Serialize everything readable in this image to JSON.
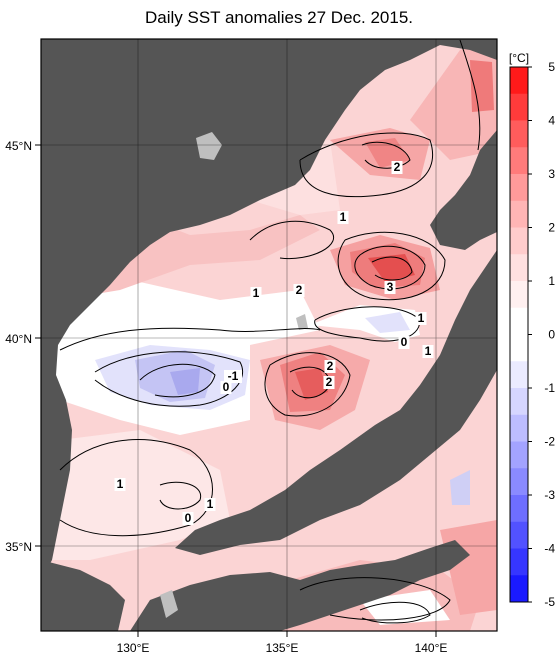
{
  "title": "Daily SST anomalies 27 Dec. 2015.",
  "map": {
    "lon_labels": [
      "130°E",
      "135°E",
      "140°E"
    ],
    "lat_labels": [
      "45°N",
      "40°N",
      "35°N"
    ],
    "contour_labels": [
      "2",
      "1",
      "2",
      "1",
      "3",
      "1",
      "0",
      "1",
      "2",
      "2",
      "-1",
      "0",
      "1",
      "1",
      "0"
    ]
  },
  "colorbar": {
    "unit": "[°C]",
    "ticks": [
      "5",
      "4",
      "3",
      "2",
      "1",
      "0",
      "-1",
      "-2",
      "-3",
      "-4",
      "-5"
    ],
    "colors": [
      "#ff1a1a",
      "#ff3b3b",
      "#ff5c5c",
      "#ff7b7b",
      "#ff9a9a",
      "#ffb5b5",
      "#ffcccc",
      "#ffe0e0",
      "#fff0f0",
      "#ffffff",
      "#ffffff",
      "#ebebff",
      "#d6d6ff",
      "#bdbdff",
      "#a3a3ff",
      "#8a8aff",
      "#6e6eff",
      "#5252ff",
      "#3636ff",
      "#1a1aff"
    ]
  },
  "colors": {
    "land": "#555555",
    "sea_base": "#fbd4d4",
    "contour": "#000000"
  }
}
